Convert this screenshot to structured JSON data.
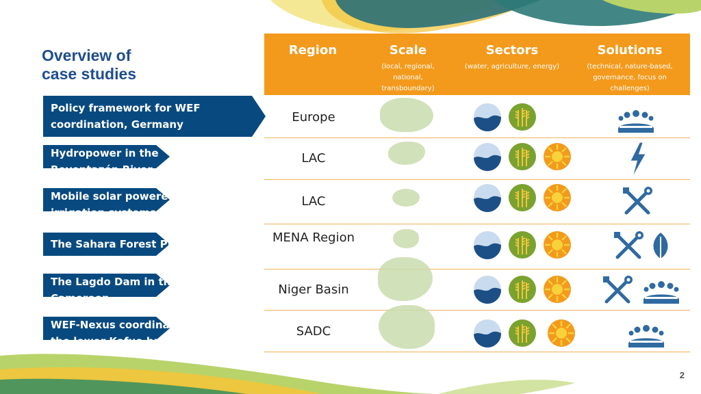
{
  "title_line1": "Overview of",
  "title_line2": "case studies",
  "cases": [
    "Policy framework for WEF coordination, Germany",
    "Hydropower in the Reventazón River, Costa Rica",
    "Mobile solar powered irrigation systems (SPIS), Bolivia",
    "The Sahara Forest Project",
    "The Lagdo Dam in the Benue, Cameroon",
    "WEF-Nexus coordination in the lower Kafue basin, Zambia"
  ],
  "headers": {
    "region": "Region",
    "scale": "Scale",
    "scale_sub": "(local, regional, national, transboundary)",
    "sectors": "Sectors",
    "sectors_sub": "(water, agriculture, energy)",
    "solutions": "Solutions",
    "solutions_sub": "(technical, nature-based, governance, focus on challenges)"
  },
  "regions": [
    "Europe",
    "LAC",
    "LAC",
    "MENA Region",
    "Niger Basin",
    "SADC"
  ],
  "colors": {
    "orange": "#f39a1c",
    "navy": "#084a80",
    "title": "#1f4e8c",
    "green": "#7aa22f",
    "blue": "#1c4f86",
    "solution": "#2f6aa1"
  },
  "icons": {
    "sectors": [
      "water-icon",
      "agriculture-icon",
      "energy-icon"
    ],
    "solutions": [
      "governance-icon",
      "lightning-icon",
      "tools-icon",
      "leaf-icon"
    ]
  },
  "page_number": "2"
}
